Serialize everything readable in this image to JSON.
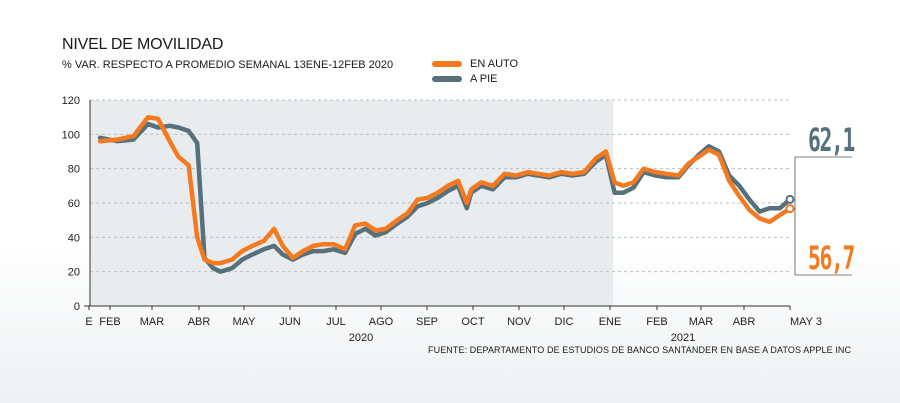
{
  "colors": {
    "auto": "#f47a20",
    "pie": "#56707d",
    "shade": "#e8ecee",
    "grid": "#b9c0c5"
  },
  "title": "NIVEL DE MOVILIDAD",
  "subtitle": "% VAR.  RESPECTO A PROMEDIO SEMANAL 13ENE-12FEB 2020",
  "legend": {
    "auto": "EN AUTO",
    "pie": "A PIE"
  },
  "source": "FUENTE: DEPARTAMENTO DE ESTUDIOS DE BANCO SANTANDER EN BASE A DATOS APPLE INC",
  "callouts": {
    "pie": "62,1",
    "auto": "56,7"
  },
  "chart_data": {
    "type": "line",
    "ylim": [
      0,
      120
    ],
    "yticks": [
      "0",
      "20",
      "40",
      "60",
      "80",
      "100",
      "120"
    ],
    "xticks": [
      "E",
      "FEB",
      "MAR",
      "ABR",
      "MAY",
      "JUN",
      "JUL",
      "AGO",
      "SEP",
      "OCT",
      "NOV",
      "DIC",
      "ENE",
      "FEB",
      "MAR",
      "ABR",
      "MAY 3"
    ],
    "year_labels": [
      "2020",
      "2021"
    ],
    "shaded_period": "2020",
    "x": [
      "2020-01-13",
      "2020-01-25",
      "2020-02-05",
      "2020-02-15",
      "2020-02-22",
      "2020-03-01",
      "2020-03-07",
      "2020-03-14",
      "2020-03-20",
      "2020-03-25",
      "2020-03-31",
      "2020-04-05",
      "2020-04-13",
      "2020-04-20",
      "2020-04-27",
      "2020-05-05",
      "2020-05-12",
      "2020-05-18",
      "2020-05-25",
      "2020-06-01",
      "2020-06-08",
      "2020-06-15",
      "2020-06-22",
      "2020-06-30",
      "2020-07-07",
      "2020-07-14",
      "2020-07-21",
      "2020-07-28",
      "2020-08-05",
      "2020-08-12",
      "2020-08-19",
      "2020-08-26",
      "2020-09-02",
      "2020-09-09",
      "2020-09-16",
      "2020-09-22",
      "2020-09-25",
      "2020-10-02",
      "2020-10-10",
      "2020-10-18",
      "2020-10-26",
      "2020-11-03",
      "2020-11-10",
      "2020-11-18",
      "2020-11-26",
      "2020-12-04",
      "2020-12-12",
      "2020-12-20",
      "2020-12-27",
      "2021-01-02",
      "2021-01-08",
      "2021-01-15",
      "2021-01-22",
      "2021-01-30",
      "2021-02-07",
      "2021-02-15",
      "2021-02-22",
      "2021-03-01",
      "2021-03-08",
      "2021-03-15",
      "2021-03-22",
      "2021-03-29",
      "2021-04-05",
      "2021-04-12",
      "2021-04-19",
      "2021-04-26",
      "2021-05-03"
    ],
    "series": [
      {
        "name": "EN AUTO",
        "values": [
          96,
          97,
          99,
          110,
          109,
          96,
          87,
          82,
          40,
          27,
          25,
          25,
          27,
          32,
          35,
          38,
          45,
          35,
          28,
          32,
          35,
          36,
          36,
          33,
          47,
          48,
          44,
          45,
          50,
          54,
          62,
          63,
          66,
          70,
          73,
          60,
          68,
          72,
          70,
          77,
          76,
          78,
          77,
          76,
          78,
          77,
          78,
          86,
          90,
          72,
          70,
          72,
          80,
          78,
          77,
          76,
          83,
          87,
          91,
          88,
          73,
          64,
          56,
          51,
          49,
          53,
          56.7
        ]
      },
      {
        "name": "A PIE",
        "values": [
          98,
          96,
          97,
          106,
          104,
          105,
          104,
          102,
          95,
          28,
          22,
          20,
          22,
          27,
          30,
          33,
          35,
          30,
          27,
          30,
          32,
          32,
          33,
          31,
          42,
          45,
          41,
          43,
          48,
          52,
          58,
          60,
          63,
          67,
          70,
          57,
          66,
          70,
          68,
          75,
          75,
          77,
          76,
          75,
          77,
          76,
          77,
          84,
          88,
          66,
          66,
          69,
          78,
          76,
          75,
          75,
          82,
          88,
          93,
          90,
          76,
          70,
          62,
          55,
          57,
          57,
          62.1
        ]
      }
    ]
  }
}
